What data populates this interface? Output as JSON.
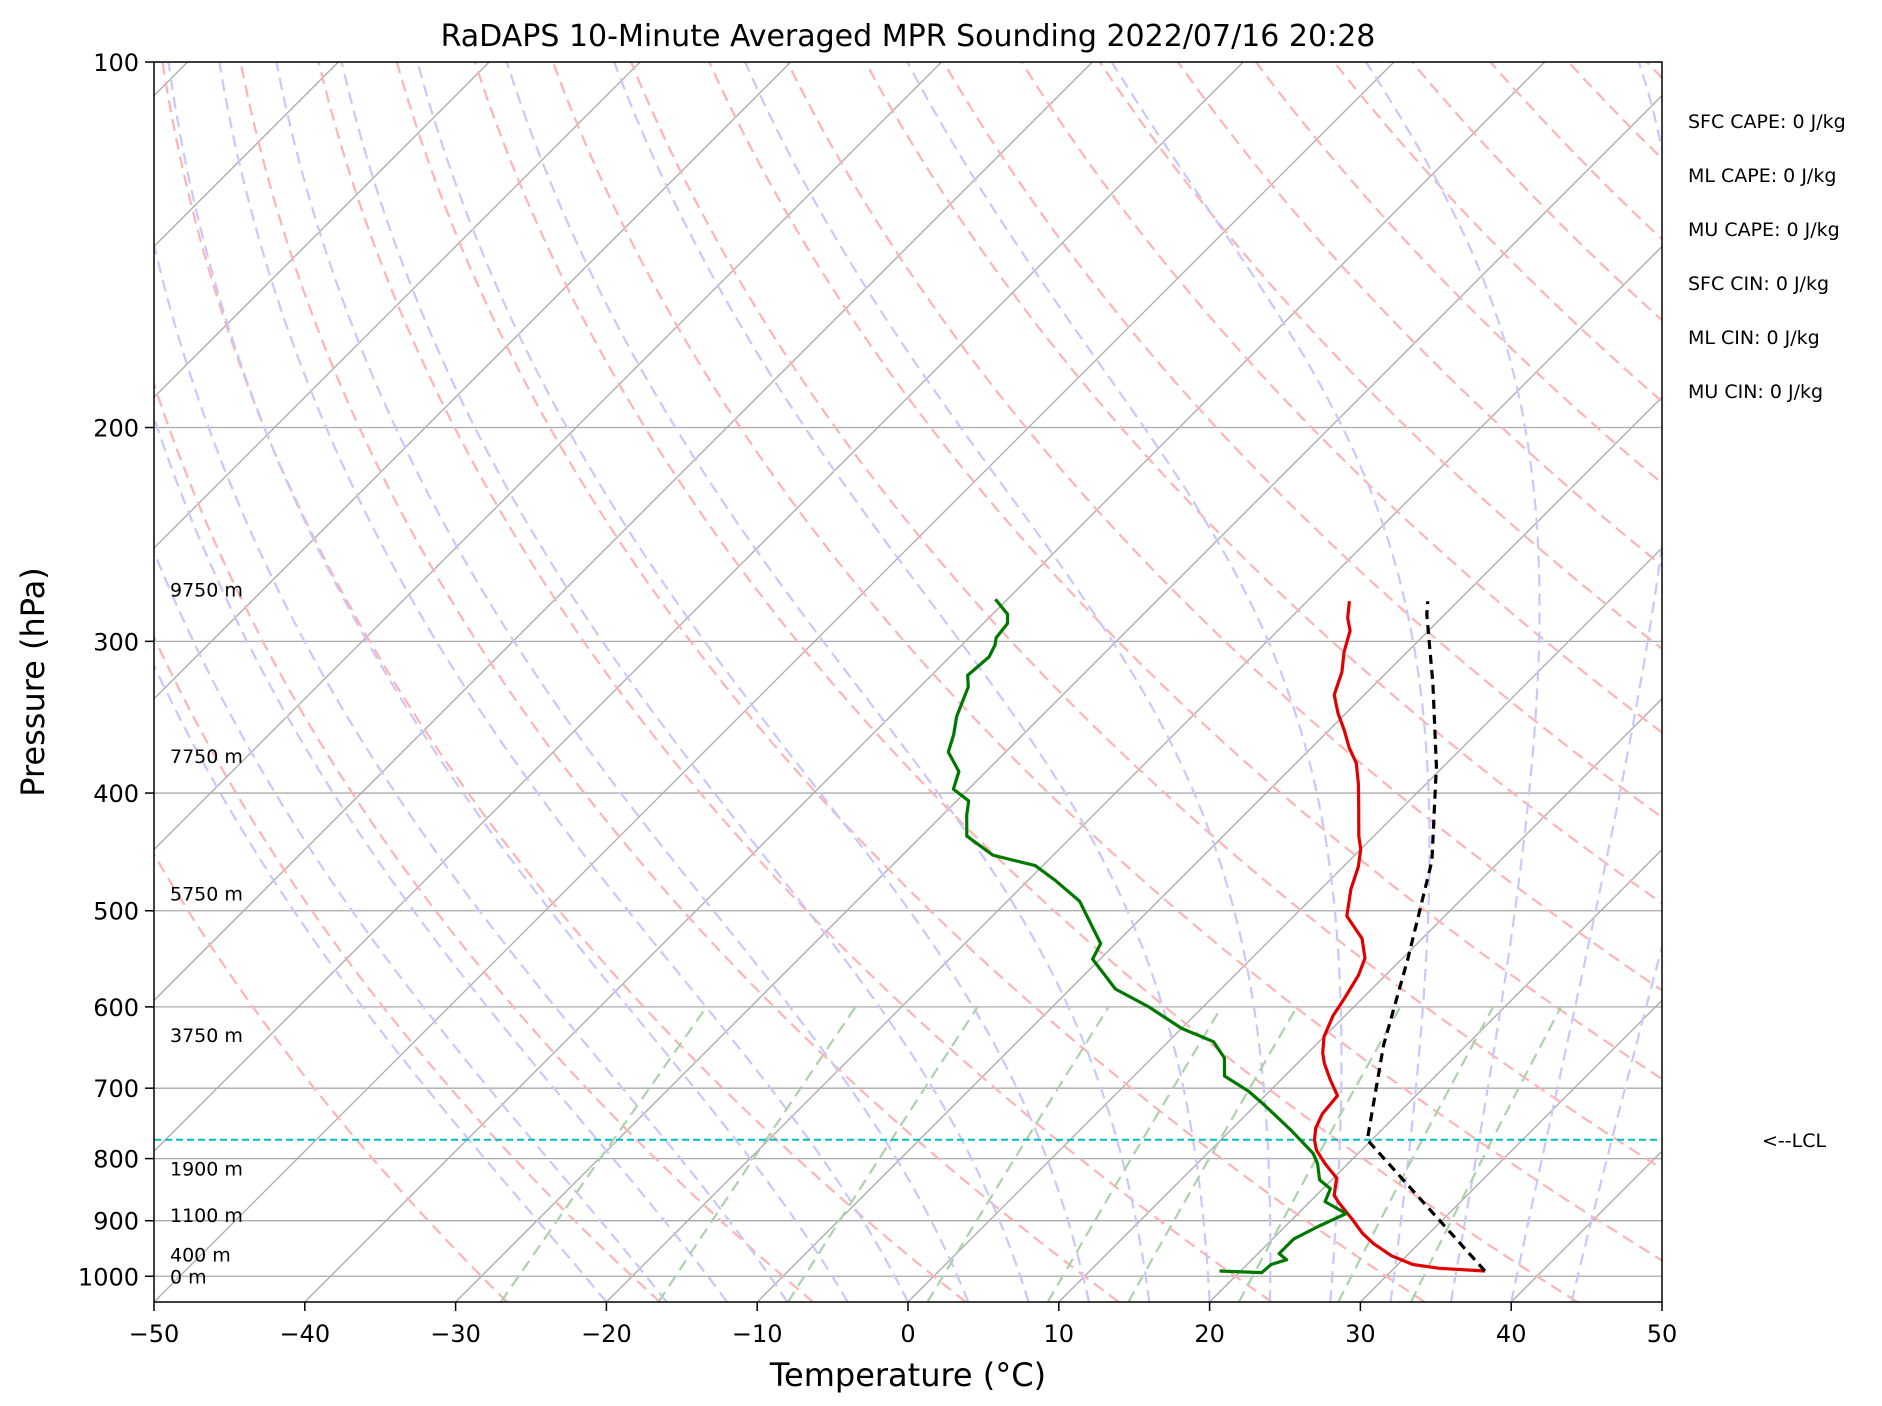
{
  "chart_data": {
    "type": "line",
    "title": "RaDAPS 10-Minute Averaged MPR Sounding 2022/07/16 20:28",
    "xlabel": "Temperature (°C)",
    "ylabel": "Pressure (hPa)",
    "xlim": [
      -50,
      50
    ],
    "ylim": [
      1050,
      100
    ],
    "y_scale": "log",
    "grid": true,
    "x_ticks": [
      -50,
      -40,
      -30,
      -20,
      -10,
      0,
      10,
      20,
      30,
      40,
      50
    ],
    "x_tick_labels": [
      "−50",
      "−40",
      "−30",
      "−20",
      "−10",
      "0",
      "10",
      "20",
      "30",
      "40",
      "50"
    ],
    "y_ticks": [
      1000,
      900,
      800,
      700,
      600,
      500,
      400,
      300,
      200,
      100
    ],
    "y_tick_labels": [
      "1000",
      "900",
      "800",
      "700",
      "600",
      "500",
      "400",
      "300",
      "200",
      "100"
    ],
    "skew_degrees": 45,
    "series": [
      {
        "role": "temperature",
        "color": "#e00000",
        "points": [
          [
            36.2,
            990
          ],
          [
            33,
            985
          ],
          [
            31,
            978
          ],
          [
            29,
            962
          ],
          [
            27,
            940
          ],
          [
            25.6,
            922
          ],
          [
            24,
            898
          ],
          [
            22,
            870
          ],
          [
            21.2,
            858
          ],
          [
            20.2,
            830
          ],
          [
            18.5,
            808
          ],
          [
            17,
            787
          ],
          [
            16.2,
            772
          ],
          [
            15.5,
            755
          ],
          [
            15,
            735
          ],
          [
            14.8,
            710
          ],
          [
            13.2,
            688
          ],
          [
            11.8,
            668
          ],
          [
            11,
            655
          ],
          [
            10,
            635
          ],
          [
            9.2,
            610
          ],
          [
            8.8,
            590
          ],
          [
            8.2,
            565
          ],
          [
            7.5,
            547
          ],
          [
            6,
            527
          ],
          [
            3.5,
            505
          ],
          [
            2,
            480
          ],
          [
            1,
            460
          ],
          [
            0,
            445
          ],
          [
            -1,
            434
          ],
          [
            -3,
            410
          ],
          [
            -4.5,
            393
          ],
          [
            -6,
            378
          ],
          [
            -7.5,
            367
          ],
          [
            -9,
            355
          ],
          [
            -10.5,
            344
          ],
          [
            -12,
            332
          ],
          [
            -13,
            318
          ],
          [
            -14.2,
            306
          ],
          [
            -15.2,
            294
          ],
          [
            -16.2,
            287
          ],
          [
            -17.2,
            278
          ]
        ]
      },
      {
        "role": "dewpoint",
        "color": "#007800",
        "points": [
          [
            18.6,
            990
          ],
          [
            21.5,
            993
          ],
          [
            21.6,
            978
          ],
          [
            22.3,
            969
          ],
          [
            21.4,
            958
          ],
          [
            21.4,
            945
          ],
          [
            21.4,
            932
          ],
          [
            22.2,
            910
          ],
          [
            23.2,
            888
          ],
          [
            21,
            868
          ],
          [
            20.5,
            847
          ],
          [
            19.2,
            833
          ],
          [
            18,
            808
          ],
          [
            17,
            792
          ],
          [
            14,
            758
          ],
          [
            10.5,
            722
          ],
          [
            8.6,
            704
          ],
          [
            6,
            684
          ],
          [
            4.8,
            661
          ],
          [
            3,
            641
          ],
          [
            0,
            625
          ],
          [
            -3.6,
            600
          ],
          [
            -7,
            580
          ],
          [
            -10.5,
            548
          ],
          [
            -11,
            532
          ],
          [
            -12.5,
            517
          ],
          [
            -15.2,
            491
          ],
          [
            -18.2,
            472
          ],
          [
            -20.5,
            459
          ],
          [
            -24,
            450
          ],
          [
            -27,
            434
          ],
          [
            -28.4,
            417
          ],
          [
            -29.2,
            406
          ],
          [
            -31,
            397
          ],
          [
            -31.8,
            384
          ],
          [
            -33.8,
            370
          ],
          [
            -34.6,
            358
          ],
          [
            -35.6,
            346
          ],
          [
            -36.8,
            327
          ],
          [
            -37.6,
            320
          ],
          [
            -37.4,
            309
          ],
          [
            -37.8,
            302
          ],
          [
            -38.2,
            298
          ],
          [
            -38.4,
            290
          ],
          [
            -39,
            285
          ],
          [
            -40.8,
            277
          ]
        ]
      },
      {
        "role": "parcel profile",
        "color": "#000000",
        "dashed": true,
        "points": [
          [
            36.2,
            990
          ],
          [
            19.7,
            772
          ],
          [
            14.5,
            645
          ],
          [
            10.4,
            548
          ],
          [
            5.5,
            455
          ],
          [
            -0.5,
            380
          ],
          [
            -6.2,
            325
          ],
          [
            -11.2,
            285
          ],
          [
            -12,
            278
          ]
        ]
      }
    ],
    "lcl": {
      "pressure": 772,
      "label": "<--LCL",
      "color": "#00bfbf"
    },
    "height_labels": [
      {
        "pressure": 1000,
        "label": "0 m"
      },
      {
        "pressure": 960,
        "label": "400 m"
      },
      {
        "pressure": 890,
        "label": "1100 m"
      },
      {
        "pressure": 815,
        "label": "1900 m"
      },
      {
        "pressure": 633,
        "label": "3750 m"
      },
      {
        "pressure": 484,
        "label": "5750 m"
      },
      {
        "pressure": 373,
        "label": "7750 m"
      },
      {
        "pressure": 272,
        "label": "9750 m"
      }
    ],
    "indices": [
      "SFC CAPE: 0 J/kg",
      "ML CAPE: 0 J/kg",
      "MU CAPE: 0 J/kg",
      "SFC CIN: 0 J/kg",
      "ML CIN: 0 J/kg",
      "MU CIN: 0 J/kg"
    ],
    "background_lines": {
      "isotherm_color": "#aaaaaa",
      "dry_adiabat_color": "#ffb3b3",
      "moist_adiabat_color": "#c8c8ff",
      "mixing_ratio_color": "#a8d4a8"
    }
  }
}
